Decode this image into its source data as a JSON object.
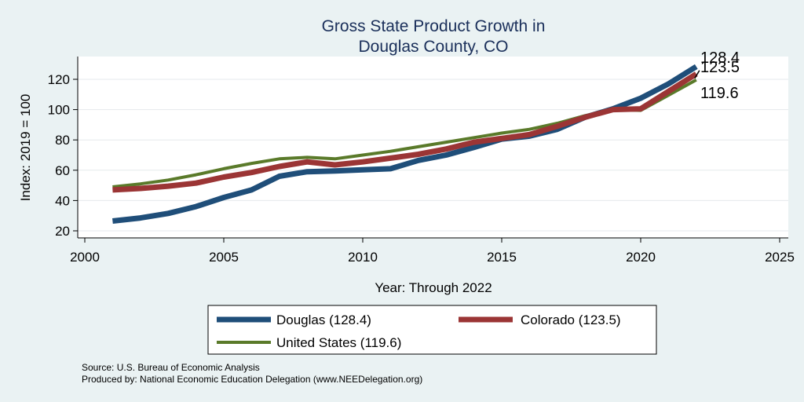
{
  "chart_data": {
    "type": "line",
    "title": [
      "Gross State Product Growth in",
      "Douglas County, CO"
    ],
    "xlabel": "Year: Through 2022",
    "ylabel": "Index: 2019 = 100",
    "xlim": [
      2000,
      2025
    ],
    "ylim": [
      20,
      130
    ],
    "xticks": [
      2000,
      2005,
      2010,
      2015,
      2020,
      2025
    ],
    "yticks": [
      20,
      40,
      60,
      80,
      100,
      120
    ],
    "grid": true,
    "legend_position": "bottom",
    "series": [
      {
        "name": "Douglas",
        "legend_label": "Douglas  (128.4)",
        "color": "#1f4e79",
        "end_label": "128.4",
        "x": [
          2001,
          2002,
          2003,
          2004,
          2005,
          2006,
          2007,
          2008,
          2009,
          2010,
          2011,
          2012,
          2013,
          2014,
          2015,
          2016,
          2017,
          2018,
          2019,
          2020,
          2021,
          2022
        ],
        "y": [
          26.5,
          28.5,
          31.5,
          36,
          42,
          47,
          56,
          59,
          59.5,
          60.3,
          61,
          66.5,
          70,
          75,
          80.5,
          82.5,
          87,
          95,
          100.5,
          107.5,
          117,
          128.4
        ]
      },
      {
        "name": "Colorado",
        "legend_label": "Colorado (123.5)",
        "color": "#9b3535",
        "end_label": "123.5",
        "x": [
          2001,
          2002,
          2003,
          2004,
          2005,
          2006,
          2007,
          2008,
          2009,
          2010,
          2011,
          2012,
          2013,
          2014,
          2015,
          2016,
          2017,
          2018,
          2019,
          2020,
          2021,
          2022
        ],
        "y": [
          47,
          48,
          49.5,
          51.5,
          55.5,
          58.5,
          62.5,
          65.5,
          63.5,
          65.5,
          68,
          70.5,
          74,
          78.5,
          81,
          83.5,
          89,
          95,
          100,
          100.5,
          112,
          123.5
        ]
      },
      {
        "name": "United States",
        "legend_label": "United States (119.6)",
        "color": "#5a7a2a",
        "end_label": "119.6",
        "x": [
          2001,
          2002,
          2003,
          2004,
          2005,
          2006,
          2007,
          2008,
          2009,
          2010,
          2011,
          2012,
          2013,
          2014,
          2015,
          2016,
          2017,
          2018,
          2019,
          2020,
          2021,
          2022
        ],
        "y": [
          49,
          51,
          53.5,
          57,
          61,
          64.5,
          67.5,
          68.5,
          67.5,
          70,
          72.5,
          75.5,
          78.5,
          81.5,
          84.5,
          87,
          91,
          96,
          100,
          99.5,
          109.5,
          119.6
        ]
      }
    ]
  },
  "notes": {
    "source": "Source: U.S. Bureau of Economic Analysis",
    "produced_by": "Produced by: National Economic Education Delegation (www.NEEDelegation.org)"
  }
}
